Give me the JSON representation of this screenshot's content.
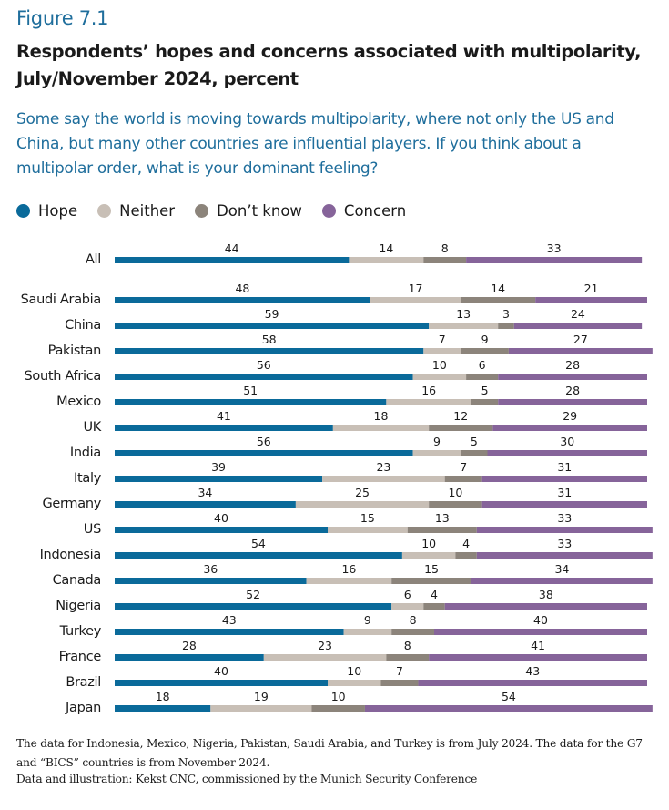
{
  "figure_label": "Figure 7.1",
  "title": "Respondents’ hopes and concerns associated with multipolarity, July/November 2024, percent",
  "question": "Some say the world is moving towards multipolarity, where not only the US and China, but many other countries are influential players. If you think about a multipolar order, what is your dominant feeling?",
  "legend": [
    {
      "label": "Hope",
      "color": "#0a6a9a"
    },
    {
      "label": "Neither",
      "color": "#c8bfb6"
    },
    {
      "label": "Don’t know",
      "color": "#8c847b"
    },
    {
      "label": "Concern",
      "color": "#86649a"
    }
  ],
  "notes": "The data for Indonesia, Mexico, Nigeria, Pakistan, Saudi Arabia, and Turkey is from July 2024. The data for the G7 and “BICS” countries is from November 2024.",
  "source": "Data and illustration: Kekst CNC, commissioned by the Munich Security Conference",
  "chart_data": {
    "type": "bar",
    "orientation": "horizontal",
    "stacked": true,
    "title": "Respondents’ hopes and concerns associated with multipolarity, July/November 2024, percent",
    "xlabel": "",
    "ylabel": "",
    "xlim": [
      0,
      100
    ],
    "grid": false,
    "legend_position": "top-left",
    "categories": [
      "All",
      "Saudi Arabia",
      "China",
      "Pakistan",
      "South Africa",
      "Mexico",
      "UK",
      "India",
      "Italy",
      "Germany",
      "US",
      "Indonesia",
      "Canada",
      "Nigeria",
      "Turkey",
      "France",
      "Brazil",
      "Japan"
    ],
    "series": [
      {
        "name": "Hope",
        "color": "#0a6a9a",
        "values": [
          44,
          48,
          59,
          58,
          56,
          51,
          41,
          56,
          39,
          34,
          40,
          54,
          36,
          52,
          43,
          28,
          40,
          18
        ]
      },
      {
        "name": "Neither",
        "color": "#c8bfb6",
        "values": [
          14,
          17,
          13,
          7,
          10,
          16,
          18,
          9,
          23,
          25,
          15,
          10,
          16,
          6,
          9,
          23,
          10,
          19
        ]
      },
      {
        "name": "Don’t know",
        "color": "#8c847b",
        "values": [
          8,
          14,
          3,
          9,
          6,
          5,
          12,
          5,
          7,
          10,
          13,
          4,
          15,
          4,
          8,
          8,
          7,
          10
        ]
      },
      {
        "name": "Concern",
        "color": "#86649a",
        "values": [
          33,
          21,
          24,
          27,
          28,
          28,
          29,
          30,
          31,
          31,
          33,
          33,
          34,
          38,
          40,
          41,
          43,
          54
        ]
      }
    ]
  }
}
